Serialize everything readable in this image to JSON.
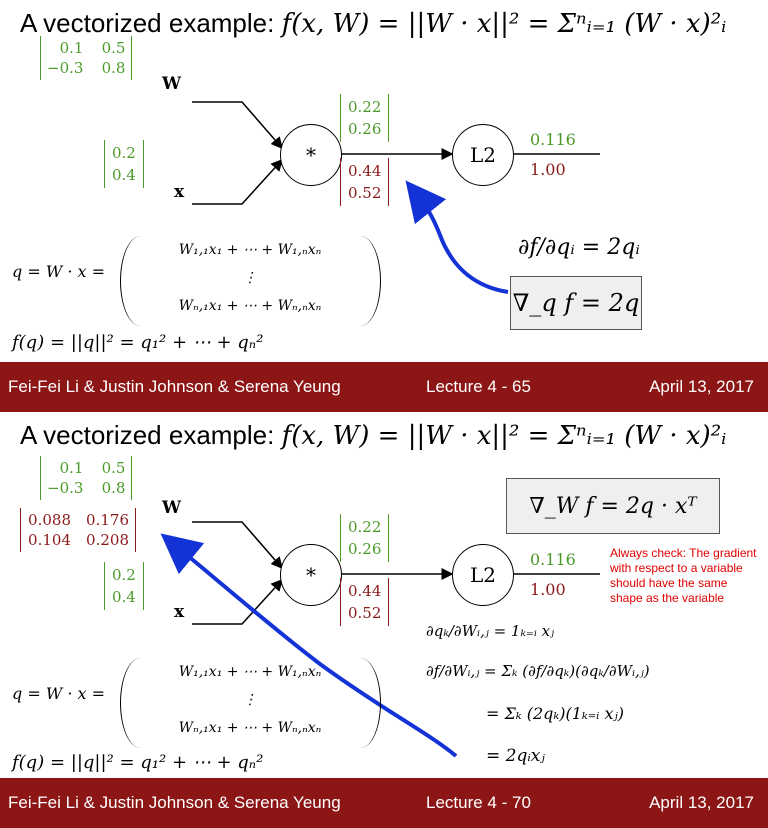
{
  "slides": [
    {
      "title_lead": "A vectorized example: ",
      "title_eq": "f(x, W) = ||W · x||² = Σⁿᵢ₌₁ (W · x)²ᵢ",
      "W_matrix": [
        [
          "0.1",
          "0.5"
        ],
        [
          "−0.3",
          "0.8"
        ]
      ],
      "W_label": "W",
      "x_vector": [
        "0.2",
        "0.4"
      ],
      "x_label": "x",
      "mul_node": "*",
      "l2_node": "L2",
      "q_forward": [
        "0.22",
        "0.26"
      ],
      "q_grad": [
        "0.44",
        "0.52"
      ],
      "out_forward": "0.116",
      "out_grad": "1.00",
      "deriv_eq": "∂f/∂qᵢ = 2qᵢ",
      "grad_box": "∇_q f = 2q",
      "q_def": "q = W · x =",
      "q_rows": [
        "W₁,₁x₁ + ⋯ + W₁,ₙxₙ",
        "⋮",
        "Wₙ,₁x₁ + ⋯ + Wₙ,ₙxₙ"
      ],
      "f_def": "f(q) = ||q||² = q₁² + ⋯ + qₙ²",
      "footer": {
        "authors": "Fei-Fei Li & Justin Johnson & Serena Yeung",
        "lecture": "Lecture 4 - 65",
        "date": "April 13, 2017"
      }
    },
    {
      "title_lead": "A vectorized example: ",
      "title_eq": "f(x, W) = ||W · x||² = Σⁿᵢ₌₁ (W · x)²ᵢ",
      "W_matrix": [
        [
          "0.1",
          "0.5"
        ],
        [
          "−0.3",
          "0.8"
        ]
      ],
      "W_grad": [
        [
          "0.088",
          "0.176"
        ],
        [
          "0.104",
          "0.208"
        ]
      ],
      "W_label": "W",
      "x_vector": [
        "0.2",
        "0.4"
      ],
      "x_label": "x",
      "mul_node": "*",
      "l2_node": "L2",
      "q_forward": [
        "0.22",
        "0.26"
      ],
      "q_grad": [
        "0.44",
        "0.52"
      ],
      "out_forward": "0.116",
      "out_grad": "1.00",
      "grad_box": "∇_W f = 2q · xᵀ",
      "note": "Always check: The gradient with respect to a variable should have the same shape as the variable",
      "deriv_lines": [
        "∂qₖ/∂Wᵢ,ⱼ = 1ₖ₌ᵢ xⱼ",
        "∂f/∂Wᵢ,ⱼ = Σₖ (∂f/∂qₖ)(∂qₖ/∂Wᵢ,ⱼ)",
        "= Σₖ (2qₖ)(1ₖ₌ᵢ xⱼ)",
        "= 2qᵢxⱼ"
      ],
      "q_def": "q = W · x =",
      "q_rows": [
        "W₁,₁x₁ + ⋯ + W₁,ₙxₙ",
        "⋮",
        "Wₙ,₁x₁ + ⋯ + Wₙ,ₙxₙ"
      ],
      "f_def": "f(q) = ||q||² = q₁² + ⋯ + qₙ²",
      "footer": {
        "authors": "Fei-Fei Li & Justin Johnson & Serena Yeung",
        "lecture": "Lecture 4 - 70",
        "date": "April 13, 2017"
      }
    }
  ]
}
